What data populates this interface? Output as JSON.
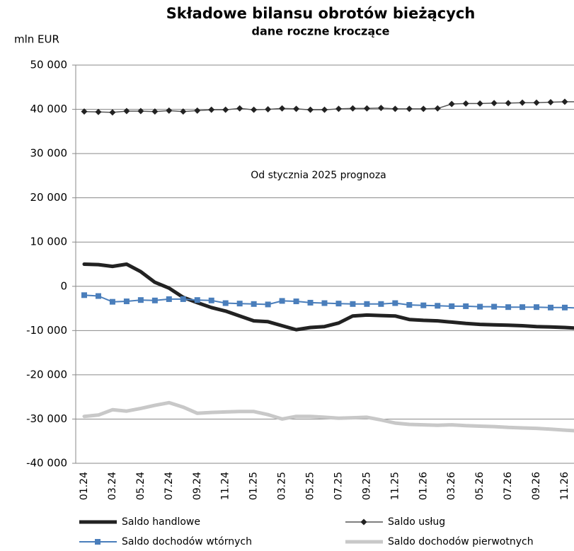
{
  "chart_data": {
    "type": "line",
    "title": "Składowe bilansu obrotów bieżących",
    "subtitle": "dane roczne kroczące",
    "y_label": "mln EUR",
    "annotation": "Od stycznia 2025 prognoza",
    "categories": [
      "01.24",
      null,
      "03.24",
      null,
      "05.24",
      null,
      "07.24",
      null,
      "09.24",
      null,
      "11.24",
      null,
      "01.25",
      null,
      "03.25",
      null,
      "05.25",
      null,
      "07.25",
      null,
      "09.25",
      null,
      "11.25",
      null,
      "01.26",
      null,
      "03.26",
      null,
      "05.26",
      null,
      "07.26",
      null,
      "09.26",
      null,
      "11.26",
      null
    ],
    "ylim": [
      -40000,
      50000
    ],
    "yticks": [
      {
        "value": -40000,
        "label": "-40 000"
      },
      {
        "value": -30000,
        "label": "-30 000"
      },
      {
        "value": -20000,
        "label": "-20 000"
      },
      {
        "value": -10000,
        "label": "-10 000"
      },
      0,
      {
        "value": 10000,
        "label": "10 000"
      },
      {
        "value": 20000,
        "label": "20 000"
      },
      {
        "value": 30000,
        "label": "30 000"
      },
      {
        "value": 40000,
        "label": "40 000"
      },
      {
        "value": 50000,
        "label": "50 000"
      }
    ],
    "grid": true,
    "series": [
      {
        "name": "Saldo handlowe",
        "color": "#222222",
        "width": 5,
        "marker": null,
        "values": [
          5000,
          4900,
          4500,
          5000,
          3300,
          900,
          -400,
          -2500,
          -3700,
          -4800,
          -5600,
          -6700,
          -7800,
          -8000,
          -8900,
          -9800,
          -9300,
          -9100,
          -8300,
          -6700,
          -6500,
          -6600,
          -6700,
          -7500,
          -7700,
          -7800,
          -8100,
          -8400,
          -8600,
          -8700,
          -8800,
          -8900,
          -9100,
          -9200,
          -9300,
          -9500
        ]
      },
      {
        "name": "Saldo usług",
        "color": "#555555",
        "width": 1.5,
        "marker": "diamond",
        "values": [
          39500,
          39400,
          39300,
          39600,
          39600,
          39500,
          39700,
          39500,
          39700,
          39900,
          39900,
          40200,
          39900,
          40000,
          40200,
          40100,
          39900,
          39900,
          40100,
          40200,
          40200,
          40300,
          40100,
          40100,
          40100,
          40200,
          41200,
          41300,
          41300,
          41400,
          41400,
          41500,
          41500,
          41600,
          41700,
          41700
        ]
      },
      {
        "name": "Saldo dochodów wtórnych",
        "color": "#4a7ebb",
        "width": 2,
        "marker": "square",
        "values": [
          -2000,
          -2200,
          -3500,
          -3400,
          -3100,
          -3200,
          -2900,
          -2900,
          -3100,
          -3200,
          -3800,
          -3900,
          -4000,
          -4100,
          -3300,
          -3400,
          -3700,
          -3800,
          -3900,
          -4000,
          -4000,
          -4000,
          -3800,
          -4200,
          -4300,
          -4400,
          -4500,
          -4500,
          -4600,
          -4600,
          -4700,
          -4700,
          -4700,
          -4800,
          -4800,
          -4900
        ]
      },
      {
        "name": "Saldo dochodów pierwotnych",
        "color": "#c8c8c8",
        "width": 5,
        "marker": null,
        "values": [
          -29400,
          -29100,
          -27900,
          -28200,
          -27600,
          -26900,
          -26300,
          -27300,
          -28700,
          -28500,
          -28400,
          -28300,
          -28300,
          -29000,
          -30000,
          -29400,
          -29400,
          -29600,
          -29800,
          -29700,
          -29600,
          -30200,
          -30900,
          -31200,
          -31300,
          -31400,
          -31300,
          -31500,
          -31600,
          -31700,
          -31900,
          -32000,
          -32100,
          -32300,
          -32500,
          -32700
        ]
      }
    ]
  }
}
